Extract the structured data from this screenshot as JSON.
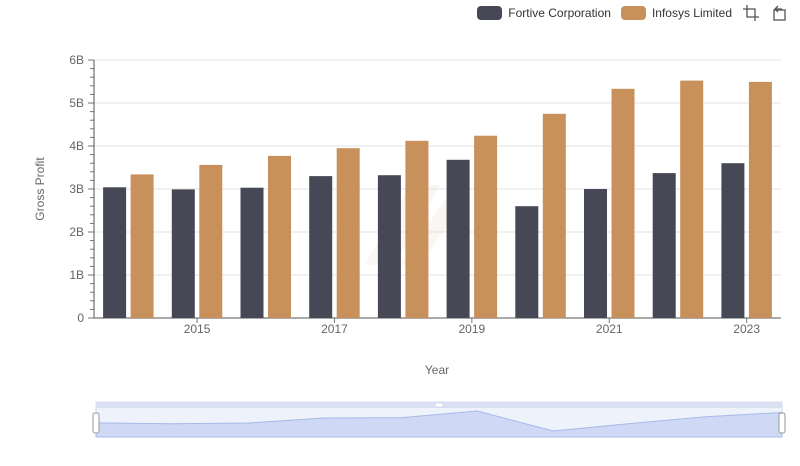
{
  "chart_data": {
    "type": "bar",
    "xlabel": "Year",
    "ylabel": "Gross Profit",
    "ylim": [
      0,
      6000000000
    ],
    "yticks": [
      "0",
      "1B",
      "2B",
      "3B",
      "4B",
      "5B",
      "6B"
    ],
    "categories": [
      "2014",
      "2015",
      "2016",
      "2017",
      "2018",
      "2019",
      "2020",
      "2021",
      "2022",
      "2023"
    ],
    "xtick_labels": [
      "2015",
      "2017",
      "2019",
      "2021",
      "2023"
    ],
    "grid": true,
    "legend_position": "top-right",
    "series": [
      {
        "name": "Fortive Corporation",
        "color": "#474855",
        "values": [
          3040000000,
          2990000000,
          3030000000,
          3300000000,
          3320000000,
          3680000000,
          2600000000,
          3000000000,
          3370000000,
          3600000000
        ]
      },
      {
        "name": "Infosys Limited",
        "color": "#c8915c",
        "values": [
          3340000000,
          3560000000,
          3770000000,
          3950000000,
          4120000000,
          4240000000,
          4750000000,
          5330000000,
          5520000000,
          5490000000
        ]
      }
    ]
  },
  "toolbar": {
    "icons": [
      "zoom-select-icon",
      "zoom-reset-icon"
    ]
  }
}
